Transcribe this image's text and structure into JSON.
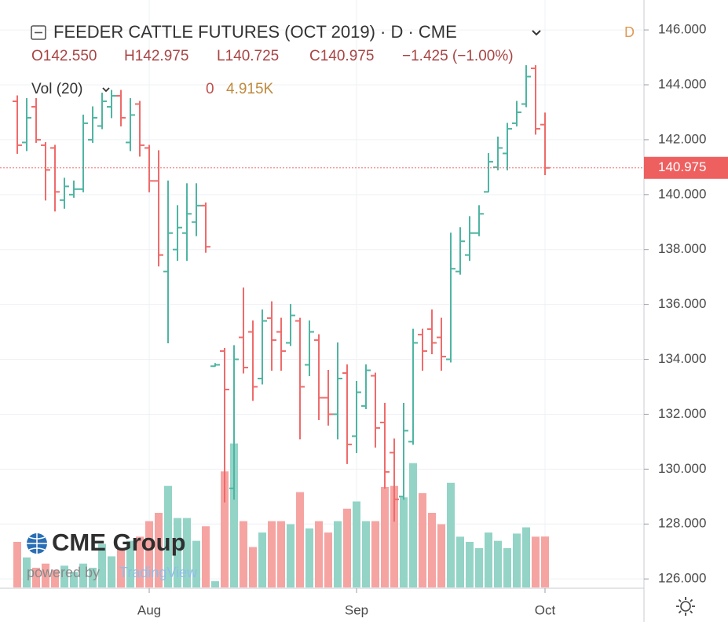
{
  "chart_data": {
    "type": "ohlc",
    "title": "FEEDER CATTLE FUTURES (OCT 2019) · D · CME",
    "interval_badge": "D",
    "legend": [
      "O142.550",
      "H142.975",
      "L140.725",
      "C140.975",
      "−1.425 (−1.00%)"
    ],
    "volume_title": "Vol (20)",
    "volume_legend": [
      "0",
      "4.915K"
    ],
    "watermark": {
      "brand": "CME Group",
      "powered": "powered by",
      "provider": "TradingView"
    },
    "ylim": [
      125.69,
      147.09
    ],
    "yticks": [
      {
        "value": 126,
        "label": "126.000"
      },
      {
        "value": 128,
        "label": "128.000"
      },
      {
        "value": 130,
        "label": "130.000"
      },
      {
        "value": 132,
        "label": "132.000"
      },
      {
        "value": 134,
        "label": "134.000"
      },
      {
        "value": 136,
        "label": "136.000"
      },
      {
        "value": 138,
        "label": "138.000"
      },
      {
        "value": 140,
        "label": "140.000"
      },
      {
        "value": 142,
        "label": "142.000"
      },
      {
        "value": 144,
        "label": "144.000"
      },
      {
        "value": 146,
        "label": "146.000"
      }
    ],
    "xticks": [
      {
        "value": 14,
        "label": "Aug"
      },
      {
        "value": 36,
        "label": "Sep"
      },
      {
        "value": 56,
        "label": "Oct"
      }
    ],
    "last_price": {
      "value": 140.975,
      "label": "140.975"
    },
    "up_color": "#4fb5a3",
    "down_color": "#ef6b6b",
    "volume_up_color": "#93d4c7",
    "volume_down_color": "#f5a4a2",
    "vlim": [
      0,
      56.7
    ],
    "grid": true,
    "open": [
      143.4,
      141.9,
      143.2,
      141.8,
      141.7,
      139.8,
      140.0,
      140.2,
      142.0,
      142.5,
      143.2,
      143.6,
      141.9,
      143.3,
      141.7,
      140.5,
      137.2,
      138.0,
      138.6,
      139.0,
      139.6,
      133.75,
      134.3,
      129.3,
      134.8,
      135.0,
      133.3,
      135.5,
      135.0,
      134.6,
      135.4,
      133.8,
      134.7,
      132.6,
      132.0,
      133.5,
      131.2,
      132.3,
      133.4,
      131.7,
      130.6,
      129.0,
      131.0,
      134.9,
      135.1,
      134.8,
      134.0,
      137.2,
      137.8,
      138.6,
      140.1,
      141.0,
      141.5,
      142.6,
      143.3,
      144.6,
      142.55
    ],
    "high": [
      143.6,
      143.5,
      143.5,
      141.9,
      141.8,
      140.6,
      140.5,
      142.9,
      143.2,
      143.7,
      143.8,
      143.8,
      143.5,
      143.4,
      141.8,
      141.6,
      140.5,
      139.6,
      140.4,
      140.4,
      139.7,
      133.85,
      134.4,
      134.5,
      136.6,
      135.4,
      135.8,
      136.1,
      135.5,
      136.0,
      135.5,
      135.4,
      134.9,
      133.6,
      134.6,
      133.8,
      133.2,
      133.8,
      133.5,
      132.4,
      131.1,
      132.4,
      135.1,
      135.1,
      135.8,
      135.5,
      138.6,
      138.8,
      139.2,
      139.6,
      141.5,
      142.1,
      142.6,
      143.4,
      144.7,
      144.7,
      142.975
    ],
    "low": [
      141.5,
      141.6,
      141.9,
      139.8,
      139.4,
      139.5,
      139.9,
      140.1,
      141.9,
      142.4,
      142.8,
      142.5,
      141.6,
      141.4,
      140.1,
      137.4,
      134.6,
      137.6,
      137.6,
      138.5,
      137.9,
      133.75,
      128.8,
      128.9,
      133.5,
      132.5,
      133.1,
      133.6,
      133.6,
      134.5,
      131.1,
      133.4,
      131.8,
      131.6,
      131.1,
      130.2,
      130.6,
      132.2,
      130.8,
      129.3,
      128.1,
      128.9,
      130.9,
      133.6,
      134.2,
      133.6,
      133.9,
      137.1,
      137.6,
      138.5,
      140.1,
      140.9,
      140.9,
      142.5,
      143.2,
      142.2,
      140.725
    ],
    "close": [
      141.8,
      142.8,
      142.0,
      140.9,
      140.1,
      140.3,
      140.2,
      142.6,
      142.8,
      143.4,
      143.6,
      142.8,
      142.9,
      141.8,
      140.5,
      137.8,
      138.6,
      138.8,
      139.3,
      139.6,
      138.1,
      133.8,
      132.9,
      134.0,
      133.7,
      133.0,
      135.4,
      134.7,
      134.3,
      135.6,
      133.0,
      135.0,
      132.6,
      132.0,
      133.3,
      130.9,
      132.8,
      133.6,
      131.5,
      129.9,
      128.9,
      131.4,
      134.6,
      134.3,
      134.6,
      134.1,
      137.3,
      138.3,
      138.6,
      139.3,
      141.2,
      141.7,
      142.4,
      143.0,
      144.3,
      142.4,
      140.975
    ],
    "volume": [
      4.4,
      2.9,
      1.9,
      2.3,
      1.7,
      2.1,
      1.5,
      2.3,
      1.9,
      4.2,
      3.0,
      3.8,
      4.5,
      4.9,
      6.4,
      7.2,
      9.8,
      6.7,
      6.7,
      4.5,
      5.9,
      0.6,
      11.2,
      13.9,
      6.4,
      3.9,
      5.3,
      6.4,
      6.4,
      6.1,
      9.2,
      5.7,
      6.4,
      5.3,
      6.4,
      7.6,
      8.3,
      6.4,
      6.4,
      9.7,
      9.8,
      8.7,
      12.0,
      9.1,
      7.2,
      6.1,
      10.1,
      4.9,
      4.4,
      3.8,
      5.3,
      4.5,
      3.8,
      5.2,
      5.8,
      4.9,
      4.915
    ]
  }
}
